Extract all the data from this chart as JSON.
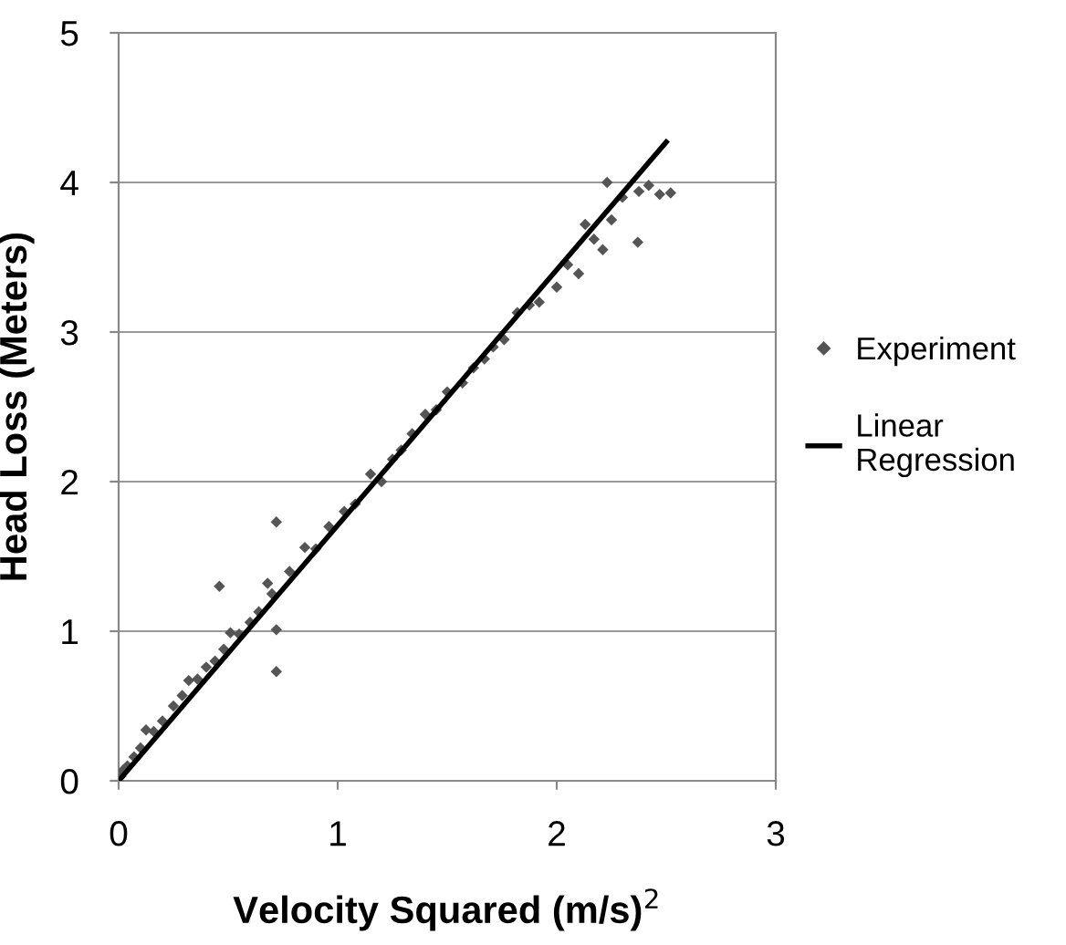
{
  "chart_data": {
    "type": "scatter",
    "xlabel": "Velocity Squared (m/s)$^{2}$",
    "ylabel": "Head Loss (Meters)",
    "xlim": [
      0,
      3
    ],
    "xticks": [
      0,
      1,
      2,
      3
    ],
    "ylim": [
      0,
      5
    ],
    "yticks": [
      0,
      1,
      2,
      3,
      4,
      5
    ],
    "grid": "y",
    "legend": "right",
    "series": [
      {
        "name": "Experiment",
        "marker": "diamond",
        "color": "#555555",
        "x": [
          0.01,
          0.02,
          0.04,
          0.07,
          0.1,
          0.125,
          0.16,
          0.2,
          0.25,
          0.29,
          0.32,
          0.36,
          0.4,
          0.44,
          0.48,
          0.51,
          0.55,
          0.6,
          0.64,
          0.68,
          0.7,
          0.72,
          0.72,
          0.72,
          0.46,
          0.78,
          0.85,
          0.9,
          0.96,
          1.03,
          1.08,
          1.15,
          1.2,
          1.25,
          1.29,
          1.34,
          1.4,
          1.45,
          1.5,
          1.57,
          1.62,
          1.67,
          1.71,
          1.76,
          1.82,
          1.875,
          1.92,
          2.0,
          2.05,
          2.1,
          2.13,
          2.17,
          2.21,
          2.25,
          2.23,
          2.3,
          2.375,
          2.37,
          2.42,
          2.47,
          2.52
        ],
        "values": [
          0.03,
          0.07,
          0.1,
          0.16,
          0.22,
          0.34,
          0.33,
          0.4,
          0.5,
          0.57,
          0.67,
          0.68,
          0.76,
          0.8,
          0.88,
          0.99,
          0.98,
          1.06,
          1.13,
          1.32,
          1.25,
          1.73,
          1.01,
          0.73,
          1.3,
          1.4,
          1.56,
          1.55,
          1.7,
          1.8,
          1.85,
          2.05,
          2.0,
          2.15,
          2.21,
          2.32,
          2.45,
          2.48,
          2.6,
          2.66,
          2.76,
          2.82,
          2.9,
          2.95,
          3.13,
          3.18,
          3.2,
          3.3,
          3.45,
          3.39,
          3.72,
          3.62,
          3.55,
          3.75,
          4.0,
          3.9,
          3.94,
          3.6,
          3.98,
          3.92,
          3.93
        ]
      },
      {
        "name": "Linear Regression",
        "type": "line",
        "color": "#000000",
        "marker": "none",
        "line_style": "solid",
        "x": [
          0,
          2.5
        ],
        "values": [
          0,
          4.27
        ]
      }
    ]
  }
}
